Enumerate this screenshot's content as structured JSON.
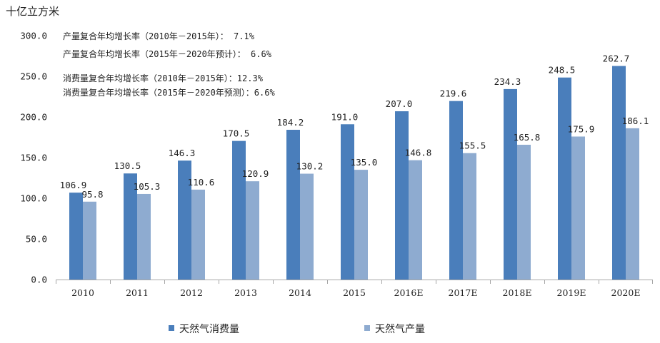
{
  "chart_data": {
    "type": "bar",
    "ylabel": "十亿立方米",
    "ylim": [
      0,
      300
    ],
    "y_ticks": [
      "0.0",
      "50.0",
      "100.0",
      "150.0",
      "200.0",
      "250.0",
      "300.0"
    ],
    "categories": [
      "2010",
      "2011",
      "2012",
      "2013",
      "2014",
      "2015",
      "2016E",
      "2017E",
      "2018E",
      "2019E",
      "2020E"
    ],
    "series": [
      {
        "name": "天然气消费量",
        "color": "#4a7ebb",
        "values": [
          106.9,
          130.5,
          146.3,
          170.5,
          184.2,
          191.0,
          207.0,
          219.6,
          234.3,
          248.5,
          262.7
        ]
      },
      {
        "name": "天然气产量",
        "color": "#8eabd0",
        "values": [
          95.8,
          105.3,
          110.6,
          120.9,
          130.2,
          135.0,
          146.8,
          155.5,
          165.8,
          175.9,
          186.1
        ]
      }
    ],
    "annotations": [
      "产量复合年均增长率（2010年－2015年）： 7.1%",
      "产量复合年均增长率（2015年－2020年预计）： 6.6%",
      "消费量复合年均增长率（2010年－2015年）：12.3%",
      "消费量复合年均增长率（2015年－2020年预测）：6.6%"
    ],
    "legend_position": "bottom",
    "grid": false
  }
}
